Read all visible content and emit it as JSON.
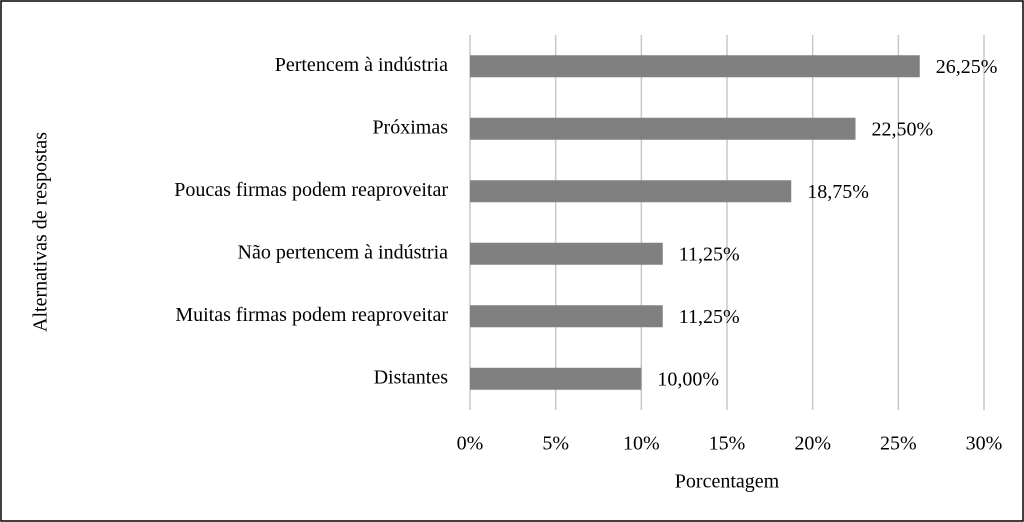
{
  "chart_data": {
    "type": "bar",
    "orientation": "horizontal",
    "categories": [
      "Pertencem à indústria",
      "Próximas",
      "Poucas firmas podem reaproveitar",
      "Não pertencem à indústria",
      "Muitas firmas podem reaproveitar",
      "Distantes"
    ],
    "values": [
      26.25,
      22.5,
      18.75,
      11.25,
      11.25,
      10
    ],
    "value_labels": [
      "26,25%",
      "22,50%",
      "18,75%",
      "11,25%",
      "11,25%",
      "10,00%"
    ],
    "color": "#808080",
    "xlim": [
      0,
      30
    ],
    "xticks": [
      {
        "value": 0,
        "label": "0%"
      },
      {
        "value": 5,
        "label": "5%"
      },
      {
        "value": 10,
        "label": "10%"
      },
      {
        "value": 15,
        "label": "15%"
      },
      {
        "value": 20,
        "label": "20%"
      },
      {
        "value": 25,
        "label": "25%"
      },
      {
        "value": 30,
        "label": "30%"
      }
    ],
    "xlabel": "Porcentagem",
    "ylabel": "Alternativas de respostas",
    "grid": true
  }
}
